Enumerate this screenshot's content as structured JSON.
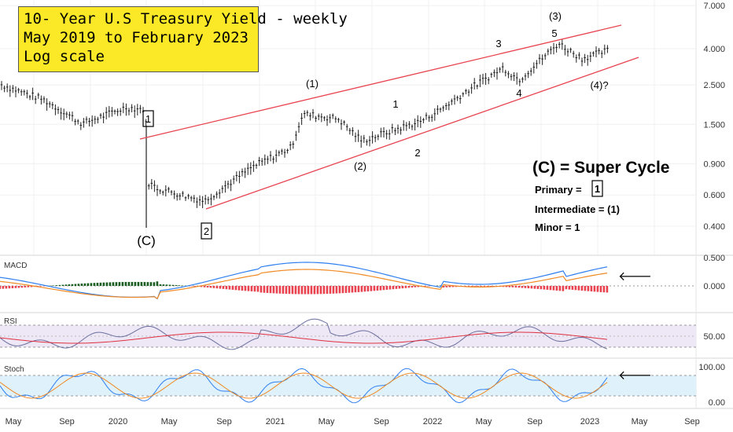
{
  "title_lines": [
    "10- Year U.S Treasury Yield - weekly",
    "May 2019 to February 2023",
    "Log scale"
  ],
  "wave_labels": {
    "c_primary": "(C)",
    "box_1": "1",
    "box_2": "2",
    "i1": "(1)",
    "i2": "(2)",
    "i3": "(3)",
    "i4": "(4)?",
    "m1": "1",
    "m2": "2",
    "m3": "3",
    "m4": "4",
    "m5": "5"
  },
  "legend": {
    "title": "(C) = Super Cycle",
    "primary": "Primary =",
    "primary_box": "1",
    "intermediate": "Intermediate = (1)",
    "minor": "Minor = 1"
  },
  "panels": {
    "macd": "MACD",
    "rsi": "RSI",
    "stoch": "Stoch"
  },
  "arrow": "🡐",
  "colors": {
    "candle": "#222222",
    "channel": "#e8434f",
    "macd_line": "#2f7ff0",
    "signal_line": "#f08a24",
    "hist_pos": "#1a5e20",
    "hist_neg": "#e8434f",
    "rsi_line": "#6a6f9c",
    "rsi_ma": "#e03040",
    "rsi_band": "#ede7f6",
    "stoch_k": "#2f7ff0",
    "stoch_d": "#f08a24",
    "stoch_band": "#dff1fb"
  },
  "chart_data": {
    "type": "line",
    "title": "10- Year U.S Treasury Yield - weekly",
    "scale": "log",
    "x_tick_labels": [
      "May",
      "Sep",
      "2020",
      "May",
      "Sep",
      "2021",
      "May",
      "Sep",
      "2022",
      "May",
      "Sep",
      "2023",
      "May",
      "Sep"
    ],
    "y_tick_labels": [
      "7.000",
      "4.000",
      "2.500",
      "1.500",
      "0.900",
      "0.600",
      "0.400"
    ],
    "ylim": [
      0.3,
      7.0
    ],
    "x": [
      "2019-05",
      "2019-07",
      "2019-09",
      "2019-11",
      "2020-01",
      "2020-03",
      "2020-05",
      "2020-08",
      "2020-11",
      "2021-01",
      "2021-03",
      "2021-05",
      "2021-08",
      "2021-11",
      "2022-01",
      "2022-03",
      "2022-05",
      "2022-08",
      "2022-10",
      "2022-12",
      "2023-02"
    ],
    "series": [
      {
        "values": [
          2.5,
          2.05,
          1.5,
          1.85,
          1.8,
          0.7,
          0.65,
          0.55,
          0.85,
          1.1,
          1.7,
          1.6,
          1.2,
          1.55,
          1.8,
          2.4,
          3.1,
          2.65,
          4.25,
          3.5,
          3.9
        ]
      }
    ],
    "macd": {
      "ticks": [
        "0.500",
        "0.000"
      ]
    },
    "rsi": {
      "ticks": [
        "50.00"
      ]
    },
    "stoch": {
      "ticks": [
        "100.00",
        "0.00"
      ]
    }
  }
}
